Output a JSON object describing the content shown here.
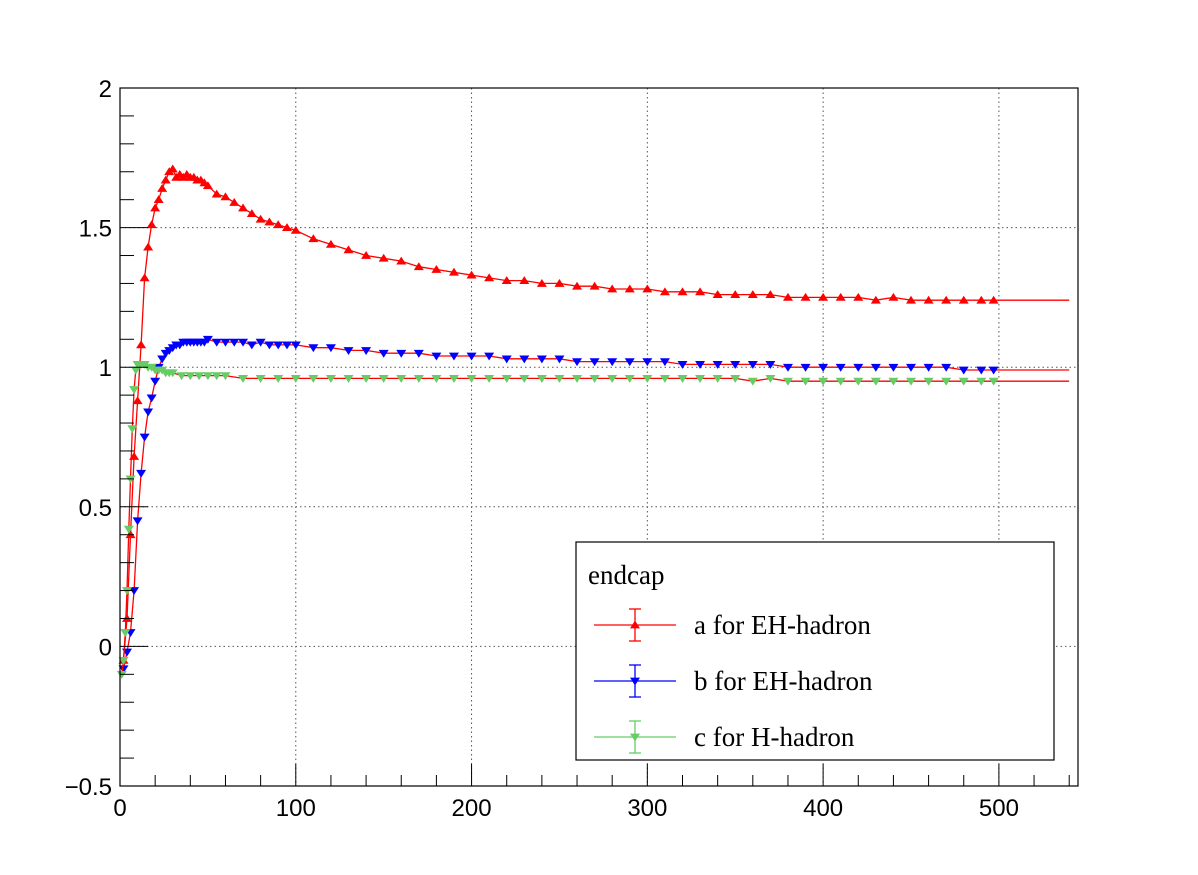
{
  "chart_data": {
    "type": "scatter",
    "title": "",
    "xlabel": "",
    "ylabel": "",
    "xlim": [
      0,
      545
    ],
    "ylim": [
      -0.5,
      2
    ],
    "x_ticks": [
      0,
      100,
      200,
      300,
      400,
      500
    ],
    "y_ticks": [
      -0.5,
      0,
      0.5,
      1,
      1.5,
      2
    ],
    "grid": true,
    "legend": {
      "title": "endcap",
      "placement": "bottom-right"
    },
    "series": [
      {
        "name": "a for EH-hadron",
        "color": "#ff0000",
        "marker": "triangle-up",
        "fit_color": "#ff0000",
        "x": [
          2,
          4,
          6,
          8,
          10,
          12,
          14,
          16,
          18,
          20,
          22,
          24,
          26,
          28,
          30,
          32,
          34,
          36,
          38,
          40,
          42,
          44,
          46,
          48,
          50,
          55,
          60,
          65,
          70,
          75,
          80,
          85,
          90,
          95,
          100,
          110,
          120,
          130,
          140,
          150,
          160,
          170,
          180,
          190,
          200,
          210,
          220,
          230,
          240,
          250,
          260,
          270,
          280,
          290,
          300,
          310,
          320,
          330,
          340,
          350,
          360,
          370,
          380,
          390,
          400,
          410,
          420,
          430,
          440,
          450,
          460,
          470,
          480,
          490,
          497
        ],
        "y": [
          -0.05,
          0.1,
          0.4,
          0.68,
          0.88,
          1.08,
          1.32,
          1.43,
          1.51,
          1.57,
          1.6,
          1.64,
          1.67,
          1.7,
          1.71,
          1.68,
          1.69,
          1.68,
          1.69,
          1.68,
          1.68,
          1.67,
          1.67,
          1.66,
          1.65,
          1.62,
          1.61,
          1.59,
          1.57,
          1.55,
          1.53,
          1.52,
          1.51,
          1.5,
          1.49,
          1.46,
          1.44,
          1.42,
          1.4,
          1.39,
          1.38,
          1.36,
          1.35,
          1.34,
          1.33,
          1.32,
          1.31,
          1.31,
          1.3,
          1.3,
          1.29,
          1.29,
          1.28,
          1.28,
          1.28,
          1.27,
          1.27,
          1.27,
          1.26,
          1.26,
          1.26,
          1.26,
          1.25,
          1.25,
          1.25,
          1.25,
          1.25,
          1.24,
          1.25,
          1.24,
          1.24,
          1.24,
          1.24,
          1.24,
          1.24
        ]
      },
      {
        "name": "b for EH-hadron",
        "color": "#0000ff",
        "marker": "triangle-down",
        "fit_color": "#ff0000",
        "x": [
          2,
          4,
          6,
          8,
          10,
          12,
          14,
          16,
          18,
          20,
          22,
          24,
          26,
          28,
          30,
          32,
          34,
          36,
          38,
          40,
          42,
          44,
          46,
          48,
          50,
          55,
          60,
          65,
          70,
          75,
          80,
          85,
          90,
          95,
          100,
          110,
          120,
          130,
          140,
          150,
          160,
          170,
          180,
          190,
          200,
          210,
          220,
          230,
          240,
          250,
          260,
          270,
          280,
          290,
          300,
          310,
          320,
          330,
          340,
          350,
          360,
          370,
          380,
          390,
          400,
          410,
          420,
          430,
          440,
          450,
          460,
          470,
          480,
          490,
          497
        ],
        "y": [
          -0.08,
          -0.02,
          0.05,
          0.2,
          0.45,
          0.62,
          0.75,
          0.84,
          0.89,
          0.95,
          1.0,
          1.03,
          1.05,
          1.06,
          1.07,
          1.08,
          1.08,
          1.09,
          1.09,
          1.09,
          1.09,
          1.09,
          1.09,
          1.09,
          1.1,
          1.09,
          1.09,
          1.09,
          1.09,
          1.08,
          1.09,
          1.08,
          1.08,
          1.08,
          1.08,
          1.07,
          1.07,
          1.06,
          1.06,
          1.05,
          1.05,
          1.05,
          1.04,
          1.04,
          1.04,
          1.04,
          1.03,
          1.03,
          1.03,
          1.03,
          1.02,
          1.02,
          1.02,
          1.02,
          1.02,
          1.02,
          1.01,
          1.01,
          1.01,
          1.01,
          1.01,
          1.01,
          1.0,
          1.0,
          1.0,
          1.0,
          1.0,
          1.0,
          1.0,
          1.0,
          1.0,
          1.0,
          0.99,
          0.99,
          0.99
        ]
      },
      {
        "name": "c for H-hadron",
        "color": "#66cc66",
        "marker": "triangle-down",
        "fit_color": "#ff0000",
        "x": [
          1,
          2,
          3,
          4,
          5,
          6,
          7,
          8,
          9,
          10,
          12,
          14,
          16,
          18,
          20,
          22,
          24,
          26,
          28,
          30,
          35,
          40,
          45,
          50,
          55,
          60,
          70,
          80,
          90,
          100,
          110,
          120,
          130,
          140,
          150,
          160,
          170,
          180,
          190,
          200,
          210,
          220,
          230,
          240,
          250,
          260,
          270,
          280,
          290,
          300,
          310,
          320,
          330,
          340,
          350,
          360,
          370,
          380,
          390,
          400,
          410,
          420,
          430,
          440,
          450,
          460,
          470,
          480,
          490,
          497
        ],
        "y": [
          -0.1,
          -0.05,
          0.05,
          0.2,
          0.42,
          0.6,
          0.78,
          0.92,
          0.99,
          1.01,
          1.01,
          1.01,
          1.0,
          1.0,
          0.99,
          0.99,
          0.99,
          0.98,
          0.98,
          0.98,
          0.97,
          0.97,
          0.97,
          0.97,
          0.97,
          0.97,
          0.96,
          0.96,
          0.96,
          0.96,
          0.96,
          0.96,
          0.96,
          0.96,
          0.96,
          0.96,
          0.96,
          0.96,
          0.96,
          0.96,
          0.96,
          0.96,
          0.96,
          0.96,
          0.96,
          0.96,
          0.96,
          0.96,
          0.96,
          0.96,
          0.96,
          0.96,
          0.96,
          0.96,
          0.96,
          0.95,
          0.96,
          0.95,
          0.95,
          0.95,
          0.95,
          0.95,
          0.95,
          0.95,
          0.95,
          0.95,
          0.95,
          0.95,
          0.95,
          0.95
        ]
      }
    ]
  }
}
